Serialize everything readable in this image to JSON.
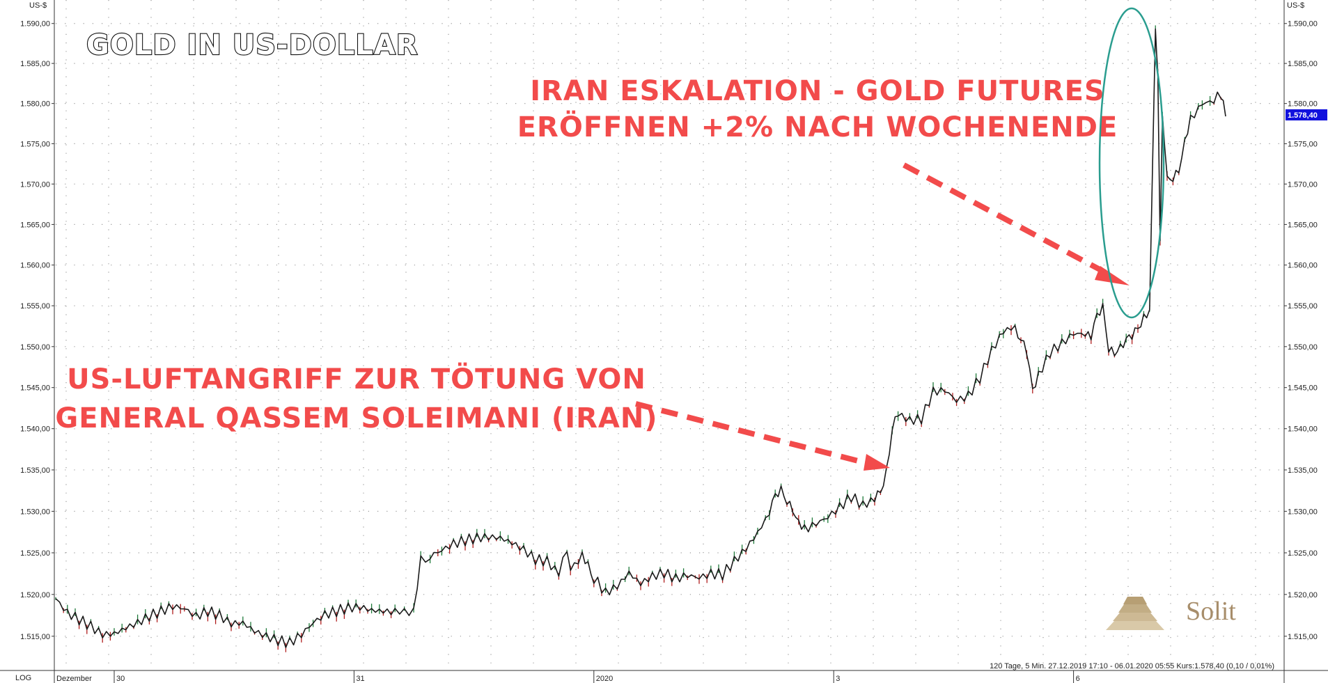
{
  "chart_data": {
    "type": "line",
    "title": "GOLD IN US-DOLLAR",
    "ylabel_left": "US-$",
    "ylabel_right": "US-$",
    "scale_label": "LOG",
    "ylim": [
      1510.75,
      1591.2
    ],
    "y_ticks": [
      1515,
      1520,
      1525,
      1530,
      1535,
      1540,
      1545,
      1550,
      1555,
      1560,
      1565,
      1570,
      1575,
      1580,
      1585,
      1590
    ],
    "y_tick_labels": [
      "1.515,00",
      "1.520,00",
      "1.525,00",
      "1.530,00",
      "1.535,00",
      "1.540,00",
      "1.545,00",
      "1.550,00",
      "1.555,00",
      "1.560,00",
      "1.565,00",
      "1.570,00",
      "1.575,00",
      "1.580,00",
      "1.585,00",
      "1.590,00"
    ],
    "x_labels": [
      {
        "label": "Dezember",
        "t": 0.0
      },
      {
        "label": "30",
        "t": 0.05
      },
      {
        "label": "31",
        "t": 0.255
      },
      {
        "label": "2020",
        "t": 0.46
      },
      {
        "label": "3",
        "t": 0.665
      },
      {
        "label": "6",
        "t": 0.87
      }
    ],
    "grid": true,
    "series": [
      {
        "color": "#1a1a1a",
        "points": [
          [
            0.0,
            1519.5
          ],
          [
            0.01,
            1517.8
          ],
          [
            0.02,
            1517.0
          ],
          [
            0.03,
            1516.2
          ],
          [
            0.04,
            1515.2
          ],
          [
            0.05,
            1515.3
          ],
          [
            0.06,
            1516.0
          ],
          [
            0.07,
            1516.6
          ],
          [
            0.08,
            1517.4
          ],
          [
            0.09,
            1518.0
          ],
          [
            0.1,
            1518.6
          ],
          [
            0.11,
            1518.3
          ],
          [
            0.12,
            1517.4
          ],
          [
            0.13,
            1518.0
          ],
          [
            0.14,
            1517.5
          ],
          [
            0.15,
            1516.5
          ],
          [
            0.16,
            1516.6
          ],
          [
            0.17,
            1515.6
          ],
          [
            0.18,
            1515.0
          ],
          [
            0.19,
            1514.5
          ],
          [
            0.2,
            1514.2
          ],
          [
            0.21,
            1515.2
          ],
          [
            0.22,
            1516.6
          ],
          [
            0.23,
            1517.6
          ],
          [
            0.24,
            1518.0
          ],
          [
            0.25,
            1518.4
          ],
          [
            0.26,
            1518.5
          ],
          [
            0.27,
            1518.1
          ],
          [
            0.28,
            1518.0
          ],
          [
            0.29,
            1517.9
          ],
          [
            0.298,
            1517.8
          ],
          [
            0.306,
            1518.4
          ],
          [
            0.312,
            1524.0
          ],
          [
            0.32,
            1524.6
          ],
          [
            0.33,
            1525.3
          ],
          [
            0.34,
            1526.1
          ],
          [
            0.35,
            1526.5
          ],
          [
            0.36,
            1526.8
          ],
          [
            0.37,
            1526.9
          ],
          [
            0.38,
            1526.8
          ],
          [
            0.39,
            1526.2
          ],
          [
            0.4,
            1525.4
          ],
          [
            0.41,
            1524.2
          ],
          [
            0.42,
            1524.0
          ],
          [
            0.43,
            1522.5
          ],
          [
            0.437,
            1525.6
          ],
          [
            0.44,
            1523.0
          ],
          [
            0.45,
            1524.6
          ],
          [
            0.455,
            1523.5
          ],
          [
            0.46,
            1522.0
          ],
          [
            0.47,
            1520.2
          ],
          [
            0.48,
            1521.0
          ],
          [
            0.49,
            1522.6
          ],
          [
            0.5,
            1521.3
          ],
          [
            0.51,
            1522.2
          ],
          [
            0.52,
            1522.6
          ],
          [
            0.53,
            1521.9
          ],
          [
            0.54,
            1522.3
          ],
          [
            0.55,
            1522.0
          ],
          [
            0.56,
            1522.5
          ],
          [
            0.57,
            1522.4
          ],
          [
            0.58,
            1524.0
          ],
          [
            0.59,
            1525.5
          ],
          [
            0.6,
            1527.4
          ],
          [
            0.61,
            1529.8
          ],
          [
            0.615,
            1531.6
          ],
          [
            0.62,
            1532.6
          ],
          [
            0.625,
            1531.5
          ],
          [
            0.63,
            1530.5
          ],
          [
            0.635,
            1528.4
          ],
          [
            0.64,
            1527.8
          ],
          [
            0.65,
            1528.5
          ],
          [
            0.66,
            1529.3
          ],
          [
            0.67,
            1530.5
          ],
          [
            0.68,
            1531.8
          ],
          [
            0.69,
            1530.7
          ],
          [
            0.7,
            1531.5
          ],
          [
            0.705,
            1532.5
          ],
          [
            0.71,
            1535.0
          ],
          [
            0.715,
            1540.0
          ],
          [
            0.72,
            1541.8
          ],
          [
            0.73,
            1541.0
          ],
          [
            0.74,
            1541.2
          ],
          [
            0.75,
            1544.5
          ],
          [
            0.76,
            1544.7
          ],
          [
            0.77,
            1543.4
          ],
          [
            0.78,
            1544.0
          ],
          [
            0.79,
            1546.2
          ],
          [
            0.8,
            1549.5
          ],
          [
            0.81,
            1551.9
          ],
          [
            0.82,
            1552.4
          ],
          [
            0.825,
            1551.0
          ],
          [
            0.83,
            1549.3
          ],
          [
            0.835,
            1544.3
          ],
          [
            0.84,
            1546.5
          ],
          [
            0.85,
            1549.3
          ],
          [
            0.86,
            1550.4
          ],
          [
            0.87,
            1551.6
          ],
          [
            0.88,
            1551.5
          ],
          [
            0.885,
            1551.1
          ],
          [
            0.89,
            1553.5
          ],
          [
            0.895,
            1554.8
          ],
          [
            0.9,
            1550.0
          ],
          [
            0.905,
            1549.5
          ],
          [
            0.91,
            1549.8
          ],
          [
            0.915,
            1550.5
          ],
          [
            0.92,
            1551.2
          ],
          [
            0.925,
            1552.4
          ],
          [
            0.93,
            1553.8
          ],
          [
            0.935,
            1554.5
          ],
          [
            0.94,
            1589.6
          ],
          [
            0.942,
            1584.0
          ],
          [
            0.944,
            1563.0
          ],
          [
            0.946,
            1578.5
          ],
          [
            0.95,
            1570.5
          ],
          [
            0.955,
            1571.0
          ],
          [
            0.96,
            1572.0
          ],
          [
            0.965,
            1575.0
          ],
          [
            0.97,
            1578.0
          ],
          [
            0.98,
            1580.0
          ],
          [
            0.99,
            1580.3
          ],
          [
            0.996,
            1581.2
          ],
          [
            1.0,
            1578.4
          ]
        ]
      }
    ],
    "last_price": "1.578,40",
    "annotations": [
      {
        "lines": [
          "IRAN ESKALATION - GOLD FUTURES",
          "ERÖFFNEN +2% NACH WOCHENENDE"
        ]
      },
      {
        "lines": [
          "US-LUFTANGRIFF  ZUR  TÖTUNG  VON",
          "GENERAL QASSEM  SOLEIMANI (IRAN)"
        ]
      }
    ],
    "info_line": "120 Tage, 5 Min. 27.12.2019 17:10 - 06.01.2020 05:55  Kurs:1.578,40 (0,10 / 0,01%)",
    "logo": "Solit"
  },
  "colors": {
    "price_line": "#1a1a1a",
    "up_candle": "#1f7a3a",
    "down_candle": "#b01e1e",
    "annotation_red": "#f24b4b",
    "ellipse": "#2a9d8f",
    "last_price_tag": "#1111dd",
    "grid_dots": "#9a9a9a"
  }
}
